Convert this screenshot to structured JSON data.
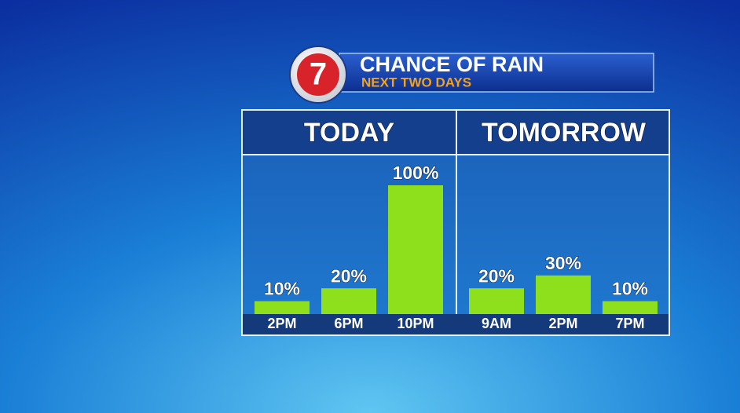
{
  "header": {
    "logo": "7",
    "title": "CHANCE OF RAIN",
    "subtitle": "NEXT TWO DAYS"
  },
  "chart_data": [
    {
      "type": "bar",
      "title": "TODAY",
      "categories": [
        "2PM",
        "6PM",
        "10PM"
      ],
      "values": [
        10,
        20,
        100
      ],
      "value_labels": [
        "10%",
        "20%",
        "100%"
      ],
      "color": "#8ee01c"
    },
    {
      "type": "bar",
      "title": "TOMORROW",
      "categories": [
        "9AM",
        "2PM",
        "7PM"
      ],
      "values": [
        20,
        30,
        10
      ],
      "value_labels": [
        "20%",
        "30%",
        "10%"
      ],
      "color": "#8ee01c"
    }
  ]
}
